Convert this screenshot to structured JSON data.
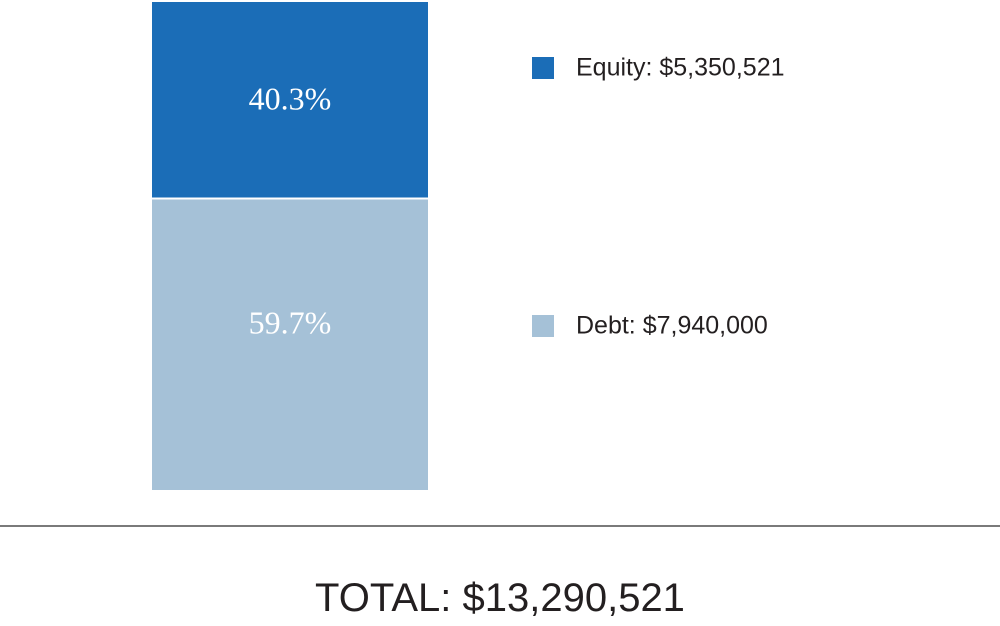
{
  "chart_data": {
    "type": "bar",
    "stacked": true,
    "categories": [
      ""
    ],
    "series": [
      {
        "name": "Equity",
        "legend_label": "Equity: $5,350,521",
        "value": 5350521,
        "percent": 40.3,
        "percent_label": "40.3%",
        "color": "#1b6db7"
      },
      {
        "name": "Debt",
        "legend_label": "Debt: $7,940,000",
        "value": 7940000,
        "percent": 59.7,
        "percent_label": "59.7%",
        "color": "#a5c1d7"
      }
    ],
    "total_label": "TOTAL: $13,290,521",
    "total_value": 13290521,
    "legend_position": "right",
    "grid": false
  }
}
